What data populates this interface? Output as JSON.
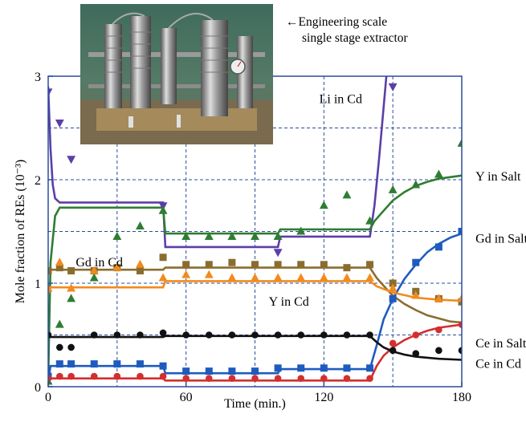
{
  "chart_data": {
    "type": "scatter",
    "xlabel": "Time (min.)",
    "ylabel": "Mole fraction of REs (10⁻³)",
    "xlim": [
      0,
      180
    ],
    "ylim": [
      0,
      3
    ],
    "xticks": [
      0,
      60,
      120,
      180
    ],
    "yticks": [
      0,
      1,
      2,
      3
    ],
    "grid": true,
    "inset_caption": [
      "←Engineering scale",
      "single stage extractor"
    ],
    "series": [
      {
        "name": "Li in Cd",
        "color": "#5b3fa8",
        "marker": "triangle-down",
        "label_at": [
          118,
          2.78
        ],
        "points": [
          [
            0,
            2.85
          ],
          [
            5,
            2.55
          ],
          [
            10,
            2.2
          ],
          [
            50,
            1.75
          ],
          [
            100,
            1.3
          ],
          [
            150,
            2.9
          ],
          [
            180,
            3.3
          ]
        ],
        "model": [
          [
            0,
            2.9
          ],
          [
            1,
            2.3
          ],
          [
            2,
            1.95
          ],
          [
            3,
            1.82
          ],
          [
            5,
            1.78
          ],
          [
            50,
            1.78
          ],
          [
            51,
            1.35
          ],
          [
            100,
            1.35
          ],
          [
            101,
            1.45
          ],
          [
            140,
            1.45
          ],
          [
            142,
            1.75
          ],
          [
            144,
            2.2
          ],
          [
            146,
            2.7
          ],
          [
            148,
            3.2
          ],
          [
            150,
            3.6
          ]
        ]
      },
      {
        "name": "Y in Salt",
        "color": "#2e7d32",
        "marker": "triangle-up",
        "label_at": [
          186,
          2.03
        ],
        "points": [
          [
            0,
            0.05
          ],
          [
            5,
            0.6
          ],
          [
            10,
            0.85
          ],
          [
            20,
            1.05
          ],
          [
            30,
            1.45
          ],
          [
            40,
            1.55
          ],
          [
            50,
            1.7
          ],
          [
            60,
            1.45
          ],
          [
            70,
            1.45
          ],
          [
            80,
            1.45
          ],
          [
            90,
            1.45
          ],
          [
            100,
            1.45
          ],
          [
            110,
            1.5
          ],
          [
            120,
            1.75
          ],
          [
            130,
            1.85
          ],
          [
            140,
            1.6
          ],
          [
            150,
            1.9
          ],
          [
            160,
            1.95
          ],
          [
            170,
            2.05
          ],
          [
            180,
            2.35
          ]
        ],
        "model": [
          [
            0,
            0.05
          ],
          [
            1,
            1.2
          ],
          [
            3,
            1.65
          ],
          [
            5,
            1.73
          ],
          [
            50,
            1.73
          ],
          [
            51,
            1.48
          ],
          [
            100,
            1.48
          ],
          [
            101,
            1.52
          ],
          [
            140,
            1.52
          ],
          [
            142,
            1.6
          ],
          [
            146,
            1.7
          ],
          [
            150,
            1.8
          ],
          [
            155,
            1.88
          ],
          [
            160,
            1.94
          ],
          [
            165,
            1.98
          ],
          [
            170,
            2.01
          ],
          [
            180,
            2.04
          ]
        ]
      },
      {
        "name": "Gd in Salt",
        "color": "#1e5bbf",
        "marker": "square",
        "label_at": [
          186,
          1.43
        ],
        "points": [
          [
            0,
            0.1
          ],
          [
            5,
            0.22
          ],
          [
            10,
            0.22
          ],
          [
            20,
            0.22
          ],
          [
            30,
            0.22
          ],
          [
            40,
            0.22
          ],
          [
            50,
            0.2
          ],
          [
            60,
            0.15
          ],
          [
            70,
            0.15
          ],
          [
            80,
            0.15
          ],
          [
            90,
            0.15
          ],
          [
            100,
            0.18
          ],
          [
            110,
            0.18
          ],
          [
            120,
            0.18
          ],
          [
            130,
            0.18
          ],
          [
            140,
            0.18
          ],
          [
            150,
            0.85
          ],
          [
            160,
            1.2
          ],
          [
            170,
            1.35
          ],
          [
            180,
            1.5
          ]
        ],
        "model": [
          [
            0,
            0.05
          ],
          [
            1,
            0.2
          ],
          [
            50,
            0.2
          ],
          [
            51,
            0.13
          ],
          [
            100,
            0.13
          ],
          [
            101,
            0.17
          ],
          [
            140,
            0.17
          ],
          [
            143,
            0.4
          ],
          [
            146,
            0.65
          ],
          [
            150,
            0.85
          ],
          [
            155,
            1.04
          ],
          [
            160,
            1.18
          ],
          [
            165,
            1.3
          ],
          [
            170,
            1.38
          ],
          [
            175,
            1.44
          ],
          [
            180,
            1.48
          ]
        ]
      },
      {
        "name": "Gd in Cd",
        "color": "#8a6d2e",
        "marker": "square",
        "label_at": [
          12,
          1.2
        ],
        "points": [
          [
            0,
            1.12
          ],
          [
            5,
            1.15
          ],
          [
            10,
            1.12
          ],
          [
            20,
            1.12
          ],
          [
            30,
            1.15
          ],
          [
            40,
            1.12
          ],
          [
            50,
            1.25
          ],
          [
            60,
            1.18
          ],
          [
            70,
            1.18
          ],
          [
            80,
            1.2
          ],
          [
            90,
            1.18
          ],
          [
            100,
            1.18
          ],
          [
            110,
            1.18
          ],
          [
            120,
            1.18
          ],
          [
            130,
            1.15
          ],
          [
            140,
            1.18
          ],
          [
            150,
            1.0
          ],
          [
            160,
            0.92
          ],
          [
            170,
            0.85
          ],
          [
            180,
            0.82
          ]
        ],
        "model": [
          [
            0,
            1.13
          ],
          [
            50,
            1.13
          ],
          [
            51,
            1.15
          ],
          [
            140,
            1.15
          ],
          [
            143,
            1.05
          ],
          [
            147,
            0.95
          ],
          [
            150,
            0.88
          ],
          [
            155,
            0.8
          ],
          [
            160,
            0.74
          ],
          [
            165,
            0.69
          ],
          [
            170,
            0.66
          ],
          [
            175,
            0.63
          ],
          [
            180,
            0.62
          ]
        ]
      },
      {
        "name": "Y in Cd",
        "color": "#f28a1e",
        "marker": "triangle-up",
        "label_at": [
          96,
          0.82
        ],
        "points": [
          [
            0,
            0.95
          ],
          [
            5,
            1.2
          ],
          [
            10,
            0.95
          ],
          [
            20,
            1.12
          ],
          [
            30,
            1.15
          ],
          [
            40,
            1.18
          ],
          [
            50,
            1.05
          ],
          [
            60,
            1.08
          ],
          [
            70,
            1.08
          ],
          [
            80,
            1.05
          ],
          [
            90,
            1.05
          ],
          [
            100,
            1.05
          ],
          [
            110,
            1.05
          ],
          [
            120,
            1.05
          ],
          [
            130,
            1.05
          ],
          [
            140,
            1.05
          ],
          [
            150,
            0.95
          ],
          [
            160,
            0.88
          ],
          [
            170,
            0.85
          ],
          [
            180,
            0.85
          ]
        ],
        "model": [
          [
            0,
            0.9
          ],
          [
            1,
            0.96
          ],
          [
            50,
            0.96
          ],
          [
            51,
            1.02
          ],
          [
            140,
            1.02
          ],
          [
            143,
            0.97
          ],
          [
            150,
            0.91
          ],
          [
            160,
            0.86
          ],
          [
            170,
            0.84
          ],
          [
            180,
            0.83
          ]
        ]
      },
      {
        "name": "Ce in Salt",
        "color": "#d32f2f",
        "marker": "circle",
        "label_at": [
          186,
          0.42
        ],
        "points": [
          [
            0,
            0.08
          ],
          [
            5,
            0.1
          ],
          [
            10,
            0.1
          ],
          [
            20,
            0.1
          ],
          [
            30,
            0.1
          ],
          [
            40,
            0.1
          ],
          [
            50,
            0.1
          ],
          [
            60,
            0.08
          ],
          [
            70,
            0.08
          ],
          [
            80,
            0.08
          ],
          [
            90,
            0.08
          ],
          [
            100,
            0.08
          ],
          [
            110,
            0.08
          ],
          [
            120,
            0.08
          ],
          [
            130,
            0.08
          ],
          [
            140,
            0.08
          ],
          [
            150,
            0.42
          ],
          [
            160,
            0.5
          ],
          [
            170,
            0.55
          ],
          [
            180,
            0.6
          ]
        ],
        "model": [
          [
            0,
            0.08
          ],
          [
            50,
            0.08
          ],
          [
            51,
            0.06
          ],
          [
            140,
            0.06
          ],
          [
            143,
            0.2
          ],
          [
            146,
            0.3
          ],
          [
            150,
            0.38
          ],
          [
            155,
            0.45
          ],
          [
            160,
            0.5
          ],
          [
            165,
            0.54
          ],
          [
            170,
            0.57
          ],
          [
            180,
            0.6
          ]
        ]
      },
      {
        "name": "Ce in Cd",
        "color": "#111111",
        "marker": "circle",
        "label_at": [
          186,
          0.22
        ],
        "points": [
          [
            0,
            0.5
          ],
          [
            5,
            0.38
          ],
          [
            10,
            0.38
          ],
          [
            20,
            0.5
          ],
          [
            30,
            0.5
          ],
          [
            40,
            0.5
          ],
          [
            50,
            0.52
          ],
          [
            60,
            0.5
          ],
          [
            70,
            0.5
          ],
          [
            80,
            0.5
          ],
          [
            90,
            0.5
          ],
          [
            100,
            0.5
          ],
          [
            110,
            0.5
          ],
          [
            120,
            0.5
          ],
          [
            130,
            0.5
          ],
          [
            140,
            0.5
          ],
          [
            150,
            0.35
          ],
          [
            160,
            0.32
          ],
          [
            170,
            0.35
          ],
          [
            180,
            0.35
          ]
        ],
        "model": [
          [
            0,
            0.48
          ],
          [
            50,
            0.48
          ],
          [
            51,
            0.49
          ],
          [
            140,
            0.49
          ],
          [
            143,
            0.43
          ],
          [
            146,
            0.38
          ],
          [
            150,
            0.34
          ],
          [
            155,
            0.31
          ],
          [
            160,
            0.29
          ],
          [
            170,
            0.27
          ],
          [
            180,
            0.26
          ]
        ]
      }
    ]
  }
}
